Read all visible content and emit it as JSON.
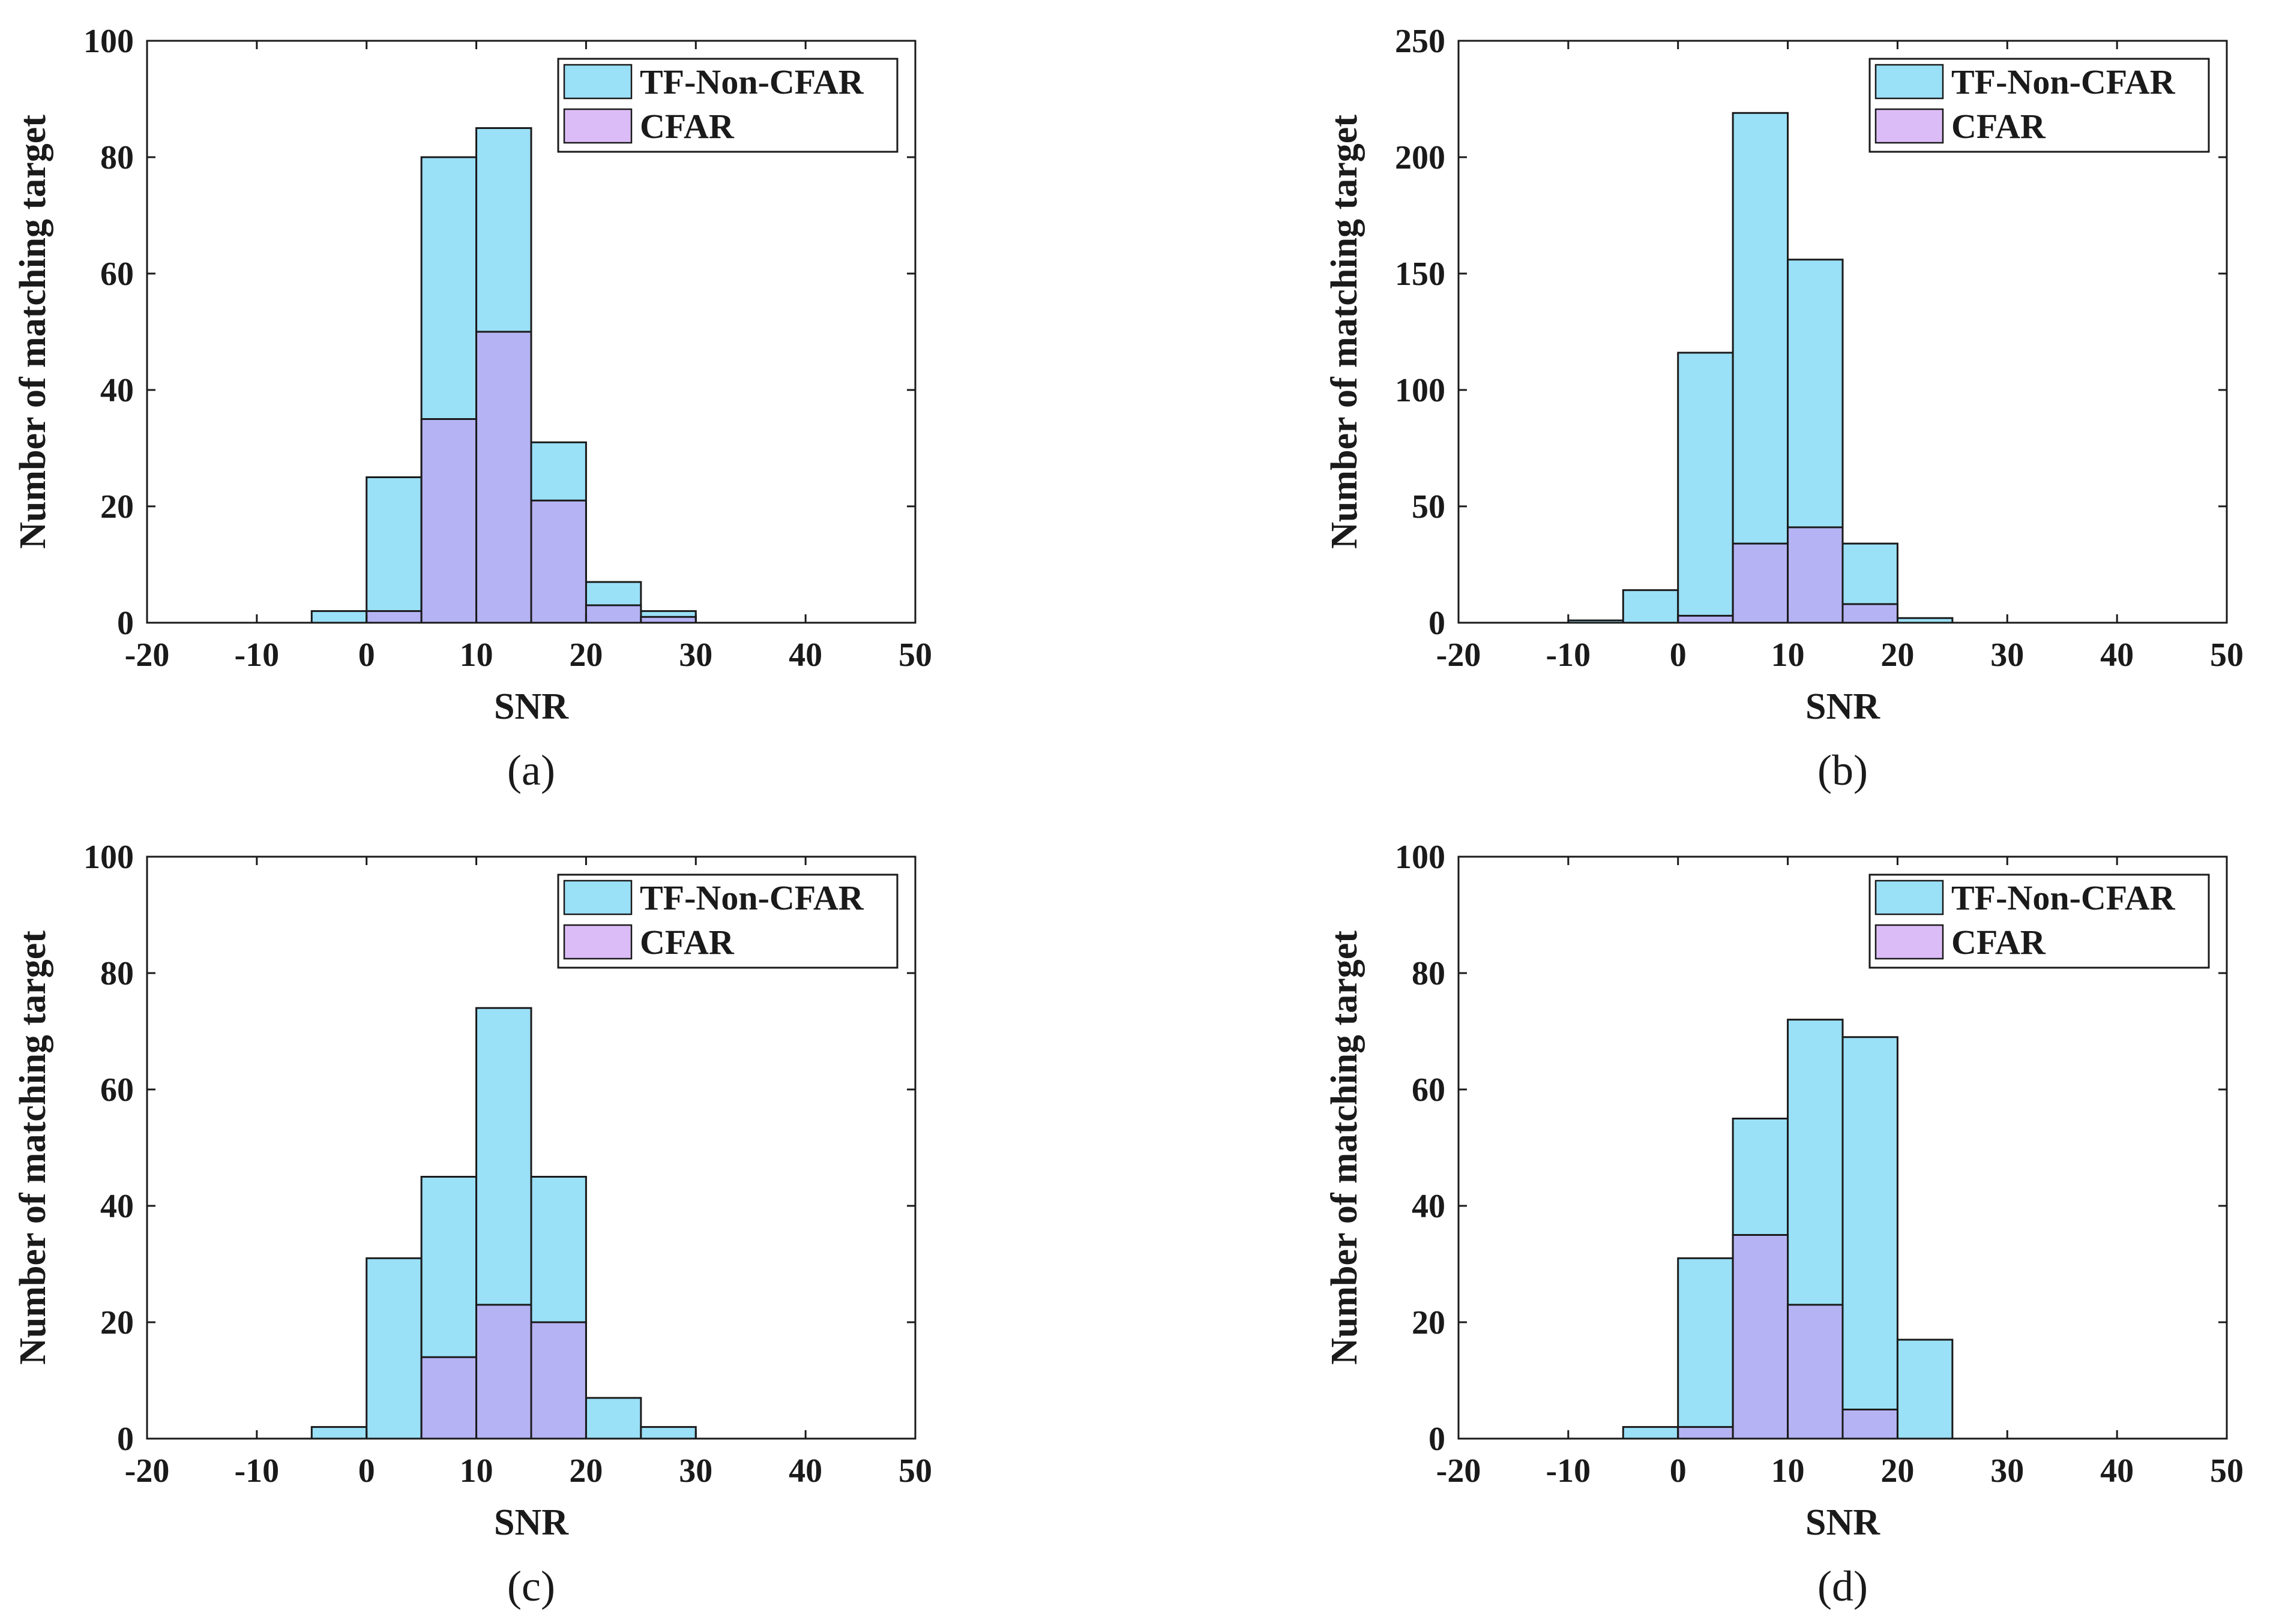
{
  "figure": {
    "panels": [
      {
        "label": "(a)"
      },
      {
        "label": "(b)"
      },
      {
        "label": "(c)"
      },
      {
        "label": "(d)"
      }
    ]
  },
  "colors": {
    "tf_non_cfar": "#9ae0f7",
    "cfar_overlap": "#b6b3f5",
    "cfar_legend": "#dbbcf6",
    "axis": "#1a1a1a"
  },
  "chart_data": [
    {
      "type": "bar",
      "panel": "(a)",
      "xlabel": "SNR",
      "ylabel": "Number of matching target",
      "xlim": [
        -20,
        50
      ],
      "ylim": [
        0,
        100
      ],
      "xticks": [
        -20,
        -10,
        0,
        10,
        20,
        30,
        40,
        50
      ],
      "yticks": [
        0,
        20,
        40,
        60,
        80,
        100
      ],
      "legend_position": "top-right",
      "bin_edges": [
        -5,
        0,
        5,
        10,
        15,
        20,
        25,
        30
      ],
      "series": [
        {
          "name": "TF-Non-CFAR",
          "values": [
            2,
            25,
            80,
            85,
            31,
            7,
            2
          ]
        },
        {
          "name": "CFAR",
          "values": [
            0,
            2,
            35,
            50,
            21,
            3,
            1
          ]
        }
      ]
    },
    {
      "type": "bar",
      "panel": "(b)",
      "xlabel": "SNR",
      "ylabel": "Number of matching target",
      "xlim": [
        -20,
        50
      ],
      "ylim": [
        0,
        250
      ],
      "xticks": [
        -20,
        -10,
        0,
        10,
        20,
        30,
        40,
        50
      ],
      "yticks": [
        0,
        50,
        100,
        150,
        200,
        250
      ],
      "legend_position": "top-right",
      "bin_edges": [
        -10,
        -5,
        0,
        5,
        10,
        15,
        20,
        25
      ],
      "series": [
        {
          "name": "TF-Non-CFAR",
          "values": [
            1,
            14,
            116,
            219,
            156,
            34,
            2
          ]
        },
        {
          "name": "CFAR",
          "values": [
            0,
            0,
            3,
            34,
            41,
            8,
            0
          ]
        }
      ]
    },
    {
      "type": "bar",
      "panel": "(c)",
      "xlabel": "SNR",
      "ylabel": "Number of matching target",
      "xlim": [
        -20,
        50
      ],
      "ylim": [
        0,
        100
      ],
      "xticks": [
        -20,
        -10,
        0,
        10,
        20,
        30,
        40,
        50
      ],
      "yticks": [
        0,
        20,
        40,
        60,
        80,
        100
      ],
      "legend_position": "top-right",
      "bin_edges": [
        -5,
        0,
        5,
        10,
        15,
        20,
        25,
        30
      ],
      "series": [
        {
          "name": "TF-Non-CFAR",
          "values": [
            2,
            31,
            45,
            74,
            45,
            7,
            2
          ]
        },
        {
          "name": "CFAR",
          "values": [
            0,
            0,
            14,
            23,
            20,
            0,
            0
          ]
        }
      ]
    },
    {
      "type": "bar",
      "panel": "(d)",
      "xlabel": "SNR",
      "ylabel": "Number of matching target",
      "xlim": [
        -20,
        50
      ],
      "ylim": [
        0,
        100
      ],
      "xticks": [
        -20,
        -10,
        0,
        10,
        20,
        30,
        40,
        50
      ],
      "yticks": [
        0,
        20,
        40,
        60,
        80,
        100
      ],
      "legend_position": "top-right",
      "bin_edges": [
        -5,
        0,
        5,
        10,
        15,
        20,
        25
      ],
      "series": [
        {
          "name": "TF-Non-CFAR",
          "values": [
            2,
            31,
            55,
            72,
            69,
            17
          ]
        },
        {
          "name": "CFAR",
          "values": [
            0,
            2,
            35,
            23,
            5,
            0
          ]
        }
      ]
    }
  ]
}
